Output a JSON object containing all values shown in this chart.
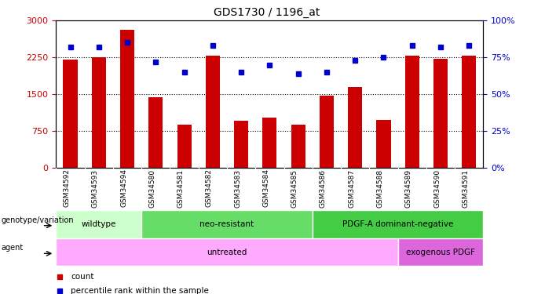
{
  "title": "GDS1730 / 1196_at",
  "samples": [
    "GSM34592",
    "GSM34593",
    "GSM34594",
    "GSM34580",
    "GSM34581",
    "GSM34582",
    "GSM34583",
    "GSM34584",
    "GSM34585",
    "GSM34586",
    "GSM34587",
    "GSM34588",
    "GSM34589",
    "GSM34590",
    "GSM34591"
  ],
  "counts": [
    2200,
    2250,
    2820,
    1430,
    870,
    2280,
    950,
    1020,
    870,
    1470,
    1640,
    980,
    2280,
    2220,
    2280
  ],
  "percentiles": [
    82,
    82,
    85,
    72,
    65,
    83,
    65,
    70,
    64,
    65,
    73,
    75,
    83,
    82,
    83
  ],
  "ylim_left": [
    0,
    3000
  ],
  "ylim_right": [
    0,
    100
  ],
  "yticks_left": [
    0,
    750,
    1500,
    2250,
    3000
  ],
  "yticks_right": [
    0,
    25,
    50,
    75,
    100
  ],
  "bar_color": "#cc0000",
  "dot_color": "#0000cc",
  "groups": [
    {
      "label": "wildtype",
      "start": 0,
      "end": 3,
      "color": "#ccffcc"
    },
    {
      "label": "neo-resistant",
      "start": 3,
      "end": 9,
      "color": "#66dd66"
    },
    {
      "label": "PDGF-A dominant-negative",
      "start": 9,
      "end": 15,
      "color": "#44cc44"
    }
  ],
  "agents": [
    {
      "label": "untreated",
      "start": 0,
      "end": 12,
      "color": "#ffaaff"
    },
    {
      "label": "exogenous PDGF",
      "start": 12,
      "end": 15,
      "color": "#dd66dd"
    }
  ],
  "legend_items": [
    {
      "label": "count",
      "color": "#cc0000"
    },
    {
      "label": "percentile rank within the sample",
      "color": "#0000cc"
    }
  ],
  "tick_label_color_left": "#cc0000",
  "tick_label_color_right": "#0000cc",
  "genotype_label": "genotype/variation",
  "agent_label": "agent"
}
